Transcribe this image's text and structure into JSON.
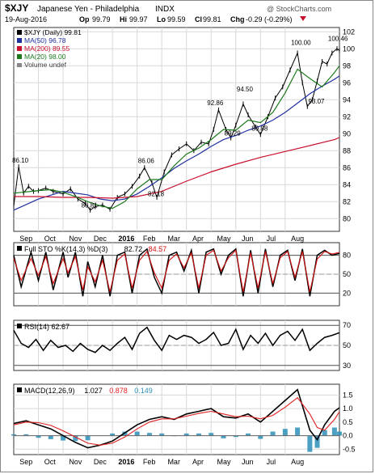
{
  "header": {
    "symbol": "$XJY",
    "name": "Japanese Yen - Philadelphia",
    "exchange": "INDX",
    "date": "19-Aug-2016",
    "op_label": "Op",
    "op": "99.79",
    "hi_label": "Hi",
    "hi": "99.97",
    "lo_label": "Lo",
    "lo": "99.59",
    "cl_label": "Cl",
    "cl": "99.81",
    "chg_label": "Chg",
    "chg": "-0.29 (-0.29%)",
    "copyright": "@ StockCharts.com"
  },
  "colors": {
    "price": "#000000",
    "ma50": "#1f2f9f",
    "ma200": "#c8102e",
    "ma20": "#1c7a1c",
    "sto_k": "#000000",
    "sto_d": "#d41010",
    "rsi": "#000000",
    "macd": "#000000",
    "signal": "#e02020",
    "hist": "#2b8fb8",
    "grid": "#d8d8d8"
  },
  "chart_data": [
    {
      "type": "line",
      "panel": "price",
      "legend": [
        "$XJY (Daily) 99.81",
        "MA(50) 96.78",
        "MA(200) 89.55",
        "MA(20) 98.00",
        "Volume undef"
      ],
      "ylim": [
        78.5,
        102.5
      ],
      "yticks": [
        "80",
        "82",
        "84",
        "86",
        "88",
        "90",
        "92",
        "94",
        "96",
        "98",
        "100",
        "102"
      ],
      "annotations": [
        {
          "text": "86.10",
          "x": 0.2,
          "y": 86.1
        },
        {
          "text": "80.81",
          "x": 3.0,
          "y": 80.81
        },
        {
          "text": "86.06",
          "x": 5.3,
          "y": 86.06
        },
        {
          "text": "82.18",
          "x": 5.7,
          "y": 82.18
        },
        {
          "text": "92.86",
          "x": 8.1,
          "y": 92.86
        },
        {
          "text": "89.29",
          "x": 8.8,
          "y": 89.29
        },
        {
          "text": "94.50",
          "x": 9.3,
          "y": 94.5
        },
        {
          "text": "89.88",
          "x": 9.9,
          "y": 89.88
        },
        {
          "text": "100.00",
          "x": 11.5,
          "y": 100.0
        },
        {
          "text": "93.07",
          "x": 12.2,
          "y": 93.07
        },
        {
          "text": "100.46",
          "x": 13.0,
          "y": 100.46
        }
      ],
      "series": [
        {
          "name": "$XJY (Daily)",
          "x": [
            0,
            0.2,
            0.4,
            0.6,
            0.8,
            1,
            1.3,
            1.6,
            2,
            2.3,
            2.6,
            2.9,
            3.1,
            3.3,
            3.6,
            3.9,
            4.2,
            4.5,
            4.8,
            5.1,
            5.3,
            5.6,
            5.8,
            6.1,
            6.4,
            6.7,
            7,
            7.3,
            7.6,
            7.9,
            8.1,
            8.3,
            8.6,
            8.8,
            9,
            9.3,
            9.5,
            9.8,
            10,
            10.3,
            10.6,
            10.9,
            11.2,
            11.5,
            11.7,
            11.9,
            12.1,
            12.3,
            12.5,
            12.7,
            12.9,
            13.1,
            13.2
          ],
          "y": [
            81.5,
            86.1,
            83.0,
            83.8,
            83.2,
            83.3,
            83.6,
            83.2,
            82.9,
            83.5,
            82.3,
            81.8,
            81.0,
            81.4,
            81.6,
            81.1,
            82.5,
            82.9,
            83.8,
            85.0,
            86.0,
            84.2,
            82.5,
            85.5,
            87.5,
            88.2,
            88.8,
            88.0,
            89.0,
            88.8,
            90.5,
            92.8,
            90.5,
            89.5,
            91.0,
            93.5,
            92.2,
            90.8,
            89.9,
            92.0,
            94.2,
            95.5,
            97.5,
            99.5,
            96.0,
            93.2,
            94.0,
            96.2,
            98.5,
            98.2,
            99.5,
            100.0,
            99.8
          ]
        },
        {
          "name": "MA(50)",
          "x": [
            0,
            1,
            2,
            3,
            3.5,
            4,
            4.5,
            5,
            5.5,
            6,
            6.5,
            7,
            7.5,
            8,
            8.5,
            9,
            9.5,
            10,
            10.5,
            11,
            11.5,
            12,
            12.5,
            13,
            13.2
          ],
          "y": [
            81.0,
            82.3,
            83.2,
            82.8,
            82.3,
            82.1,
            82.3,
            82.9,
            83.8,
            84.8,
            85.9,
            86.8,
            87.6,
            88.5,
            89.3,
            89.8,
            90.4,
            90.9,
            91.6,
            92.5,
            93.6,
            94.7,
            95.6,
            96.4,
            96.8
          ]
        },
        {
          "name": "MA(200)",
          "x": [
            0,
            1,
            2,
            3,
            4,
            5,
            6,
            7,
            8,
            9,
            10,
            11,
            12,
            13,
            13.2
          ],
          "y": [
            82.6,
            82.6,
            82.5,
            82.5,
            82.4,
            82.6,
            83.2,
            84.4,
            85.5,
            86.4,
            87.2,
            87.9,
            88.6,
            89.3,
            89.55
          ]
        },
        {
          "name": "MA(20)",
          "x": [
            0,
            1,
            1.5,
            2,
            2.5,
            3,
            3.5,
            4,
            4.5,
            5,
            5.5,
            6,
            6.5,
            7,
            7.5,
            8,
            8.5,
            9,
            9.5,
            10,
            10.5,
            11,
            11.5,
            12,
            12.5,
            13,
            13.2
          ],
          "y": [
            83.0,
            83.3,
            83.4,
            83.1,
            82.6,
            82.0,
            81.5,
            81.2,
            82.0,
            83.5,
            84.6,
            84.6,
            86.2,
            87.6,
            88.3,
            89.3,
            90.5,
            90.4,
            91.6,
            91.3,
            92.5,
            94.8,
            97.6,
            96.5,
            95.5,
            97.2,
            98.0
          ]
        }
      ]
    },
    {
      "type": "line",
      "panel": "stochastic",
      "legend": [
        "Full STO %K(14,3) %D(3)",
        "82.72",
        "84.57"
      ],
      "ylim": [
        0,
        100
      ],
      "yticks": [
        "20",
        "50",
        "80"
      ],
      "series": [
        {
          "name": "%K(14,3)",
          "x": [
            0,
            0.3,
            0.7,
            1,
            1.3,
            1.6,
            2,
            2.2,
            2.5,
            2.8,
            3,
            3.3,
            3.6,
            3.9,
            4.2,
            4.5,
            4.8,
            5.1,
            5.4,
            5.7,
            6,
            6.3,
            6.6,
            6.9,
            7.2,
            7.5,
            7.8,
            8.1,
            8.4,
            8.7,
            9,
            9.3,
            9.6,
            9.9,
            10.2,
            10.5,
            10.8,
            11.1,
            11.4,
            11.7,
            12,
            12.3,
            12.6,
            12.9,
            13.2
          ],
          "y": [
            80,
            30,
            85,
            40,
            85,
            25,
            85,
            45,
            85,
            15,
            70,
            30,
            80,
            15,
            80,
            85,
            20,
            80,
            90,
            45,
            20,
            80,
            85,
            55,
            88,
            20,
            85,
            90,
            50,
            80,
            90,
            15,
            88,
            20,
            90,
            30,
            80,
            88,
            40,
            90,
            15,
            80,
            88,
            80,
            83
          ]
        },
        {
          "name": "%D(3)",
          "x": [
            0,
            0.3,
            0.7,
            1,
            1.3,
            1.6,
            2,
            2.2,
            2.5,
            2.8,
            3,
            3.3,
            3.6,
            3.9,
            4.2,
            4.5,
            4.8,
            5.1,
            5.4,
            5.7,
            6,
            6.3,
            6.6,
            6.9,
            7.2,
            7.5,
            7.8,
            8.1,
            8.4,
            8.7,
            9,
            9.3,
            9.6,
            9.9,
            10.2,
            10.5,
            10.8,
            11.1,
            11.4,
            11.7,
            12,
            12.3,
            12.6,
            12.9,
            13.2
          ],
          "y": [
            75,
            40,
            75,
            48,
            78,
            35,
            75,
            52,
            78,
            25,
            62,
            38,
            72,
            22,
            72,
            82,
            28,
            72,
            86,
            52,
            28,
            72,
            82,
            60,
            84,
            28,
            80,
            88,
            55,
            76,
            88,
            22,
            84,
            28,
            86,
            35,
            76,
            86,
            45,
            86,
            22,
            74,
            86,
            82,
            84.6
          ]
        }
      ]
    },
    {
      "type": "line",
      "panel": "rsi",
      "legend": [
        "RSI(14) 62.67"
      ],
      "ylim": [
        25,
        75
      ],
      "yticks": [
        "30",
        "50",
        "70"
      ],
      "series": [
        {
          "name": "RSI(14)",
          "x": [
            0,
            0.3,
            0.6,
            0.9,
            1.2,
            1.5,
            1.8,
            2.1,
            2.4,
            2.7,
            3,
            3.3,
            3.6,
            3.9,
            4.2,
            4.5,
            4.8,
            5.1,
            5.4,
            5.7,
            6,
            6.3,
            6.6,
            6.9,
            7.2,
            7.5,
            7.8,
            8.1,
            8.4,
            8.7,
            9,
            9.3,
            9.6,
            9.9,
            10.2,
            10.5,
            10.8,
            11.1,
            11.4,
            11.7,
            12,
            12.3,
            12.6,
            12.9,
            13.2
          ],
          "y": [
            65,
            52,
            48,
            56,
            45,
            55,
            48,
            50,
            44,
            52,
            46,
            43,
            50,
            45,
            52,
            58,
            46,
            62,
            68,
            55,
            45,
            60,
            56,
            60,
            58,
            52,
            56,
            63,
            50,
            52,
            66,
            46,
            60,
            52,
            62,
            50,
            60,
            64,
            55,
            66,
            45,
            52,
            58,
            60,
            62.7
          ]
        }
      ]
    },
    {
      "type": "line",
      "panel": "macd",
      "legend": [
        "MACD(12,26,9)",
        "1.027",
        "0.878",
        "0.149"
      ],
      "ylim": [
        -0.7,
        1.9
      ],
      "yticks": [
        "-0.5",
        "0.0",
        "0.5",
        "1.0",
        "1.5"
      ],
      "series": [
        {
          "name": "MACD(12,26,9)",
          "x": [
            0,
            0.5,
            1,
            1.5,
            2,
            2.5,
            3,
            3.5,
            4,
            4.5,
            5,
            5.5,
            6,
            6.5,
            7,
            7.5,
            8,
            8.5,
            9,
            9.5,
            10,
            10.5,
            11,
            11.5,
            12,
            12.3,
            12.6,
            13,
            13.2
          ],
          "y": [
            0.45,
            0.55,
            0.4,
            0.25,
            0.0,
            -0.25,
            -0.45,
            -0.35,
            -0.2,
            0.1,
            0.4,
            0.6,
            0.7,
            0.6,
            0.8,
            0.9,
            1.0,
            0.7,
            0.65,
            0.8,
            0.5,
            0.9,
            1.3,
            1.7,
            0.2,
            -0.15,
            0.4,
            0.9,
            1.03
          ]
        },
        {
          "name": "Signal",
          "x": [
            0,
            0.5,
            1,
            1.5,
            2,
            2.5,
            3,
            3.5,
            4,
            4.5,
            5,
            5.5,
            6,
            6.5,
            7,
            7.5,
            8,
            8.5,
            9,
            9.5,
            10,
            10.5,
            11,
            11.5,
            12,
            12.3,
            12.6,
            13,
            13.2
          ],
          "y": [
            0.4,
            0.5,
            0.48,
            0.38,
            0.18,
            -0.05,
            -0.28,
            -0.35,
            -0.28,
            -0.05,
            0.25,
            0.5,
            0.62,
            0.62,
            0.72,
            0.82,
            0.9,
            0.8,
            0.7,
            0.72,
            0.62,
            0.75,
            1.05,
            1.4,
            0.8,
            0.3,
            0.2,
            0.6,
            0.88
          ]
        },
        {
          "name": "Histogram",
          "x": [
            0,
            0.5,
            1,
            1.5,
            2,
            2.5,
            3,
            3.5,
            4,
            4.5,
            5,
            5.5,
            6,
            6.5,
            7,
            7.5,
            8,
            8.5,
            9,
            9.5,
            10,
            10.5,
            11,
            11.5,
            12,
            12.3,
            12.6,
            13,
            13.2
          ],
          "y": [
            0.05,
            0.05,
            -0.08,
            -0.13,
            -0.18,
            -0.2,
            -0.17,
            0.0,
            0.08,
            0.15,
            0.15,
            0.1,
            0.08,
            -0.02,
            0.08,
            0.08,
            0.1,
            -0.1,
            -0.05,
            0.08,
            -0.12,
            0.15,
            0.25,
            0.3,
            -0.6,
            -0.45,
            0.2,
            0.3,
            0.15
          ]
        }
      ]
    }
  ],
  "x_axis": {
    "labels": [
      "Sep",
      "Oct",
      "Nov",
      "Dec",
      "2016",
      "Feb",
      "Mar",
      "Apr",
      "May",
      "Jun",
      "Jul",
      "Aug"
    ],
    "positions": [
      0.5,
      1.5,
      2.5,
      3.5,
      4.5,
      5.5,
      6.5,
      7.5,
      8.5,
      9.5,
      10.5,
      11.5
    ]
  }
}
